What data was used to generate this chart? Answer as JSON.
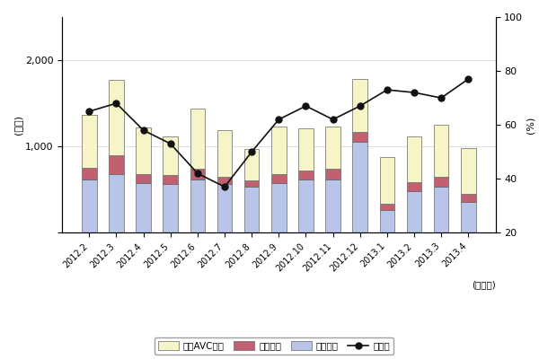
{
  "months": [
    "2012.2",
    "2012.3",
    "2012.4",
    "2012.5",
    "2012.6",
    "2012.7",
    "2012.8",
    "2012.9",
    "2012.10",
    "2012.11",
    "2012.12",
    "2013.1",
    "2013.2",
    "2013.3",
    "2013.4"
  ],
  "video": [
    620,
    680,
    580,
    560,
    620,
    560,
    530,
    580,
    620,
    620,
    1050,
    260,
    480,
    530,
    360
  ],
  "audio": [
    130,
    220,
    100,
    110,
    120,
    90,
    80,
    100,
    100,
    120,
    120,
    80,
    110,
    120,
    90
  ],
  "car_avc": [
    620,
    870,
    540,
    450,
    700,
    540,
    360,
    550,
    490,
    490,
    610,
    540,
    530,
    600,
    530
  ],
  "yoy": [
    65,
    68,
    58,
    53,
    42,
    37,
    50,
    62,
    67,
    62,
    67,
    73,
    72,
    70,
    77
  ],
  "bar_colors": [
    "#b8c4e8",
    "#c06070",
    "#f5f5c8"
  ],
  "line_color": "#111111",
  "ylim_left": [
    0,
    2500
  ],
  "ylim_right": [
    20,
    100
  ],
  "yticks_left": [
    0,
    1000,
    2000
  ],
  "yticks_right": [
    20,
    40,
    60,
    80,
    100
  ],
  "ylabel_left": "(億円)",
  "ylabel_right": "(%)",
  "xlabel": "(年・月)",
  "legend_labels": [
    "カーAVC機器",
    "音声機器",
    "映像機器",
    "前年比"
  ],
  "background_color": "#ffffff",
  "grid_color": "#d0d0d0"
}
